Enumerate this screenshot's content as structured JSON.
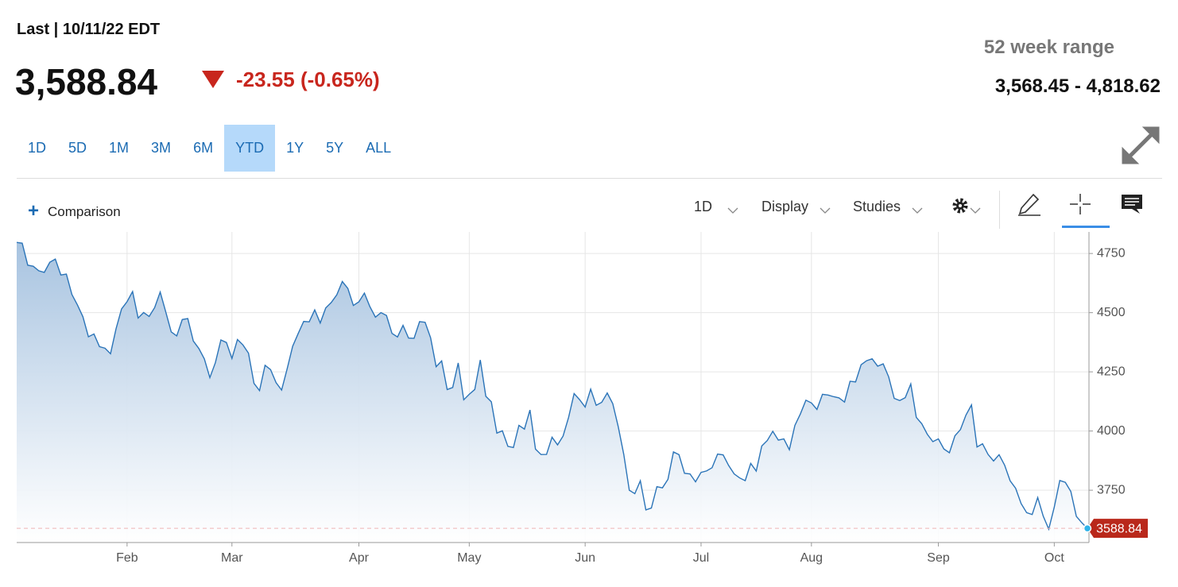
{
  "header": {
    "last_label": "Last | 10/11/22 EDT",
    "price": "3,588.84",
    "change": "-23.55 (-0.65%)",
    "range_title": "52 week range",
    "range": "3,568.45 - 4,818.62"
  },
  "ranges": {
    "buttons": [
      "1D",
      "5D",
      "1M",
      "3M",
      "6M",
      "YTD",
      "1Y",
      "5Y",
      "ALL"
    ],
    "selected": "YTD"
  },
  "toolbar": {
    "comparison": "Comparison",
    "interval": "1D",
    "display": "Display",
    "studies": "Studies"
  },
  "chart_data": {
    "type": "area",
    "color": "#2b74b8",
    "categories": [
      null,
      null,
      null,
      null,
      null,
      null,
      null,
      null,
      null,
      null,
      null,
      null,
      null,
      null,
      null,
      null,
      null,
      null,
      null,
      null,
      "Feb",
      null,
      null,
      null,
      null,
      null,
      null,
      null,
      null,
      null,
      null,
      null,
      null,
      null,
      null,
      null,
      null,
      null,
      null,
      "Mar",
      null,
      null,
      null,
      null,
      null,
      null,
      null,
      null,
      null,
      null,
      null,
      null,
      null,
      null,
      null,
      null,
      null,
      null,
      null,
      null,
      null,
      null,
      "Apr",
      null,
      null,
      null,
      null,
      null,
      null,
      null,
      null,
      null,
      null,
      null,
      null,
      null,
      null,
      null,
      null,
      null,
      null,
      null,
      "May",
      null,
      null,
      null,
      null,
      null,
      null,
      null,
      null,
      null,
      null,
      null,
      null,
      null,
      null,
      null,
      null,
      null,
      null,
      null,
      null,
      "Jun",
      null,
      null,
      null,
      null,
      null,
      null,
      null,
      null,
      null,
      null,
      null,
      null,
      null,
      null,
      null,
      null,
      null,
      null,
      null,
      null,
      "Jul",
      null,
      null,
      null,
      null,
      null,
      null,
      null,
      null,
      null,
      null,
      null,
      null,
      null,
      null,
      null,
      null,
      null,
      null,
      null,
      "Aug",
      null,
      null,
      null,
      null,
      null,
      null,
      null,
      null,
      null,
      null,
      null,
      null,
      null,
      null,
      null,
      null,
      null,
      null,
      null,
      null,
      null,
      null,
      "Sep",
      null,
      null,
      null,
      null,
      null,
      null,
      null,
      null,
      null,
      null,
      null,
      null,
      null,
      null,
      null,
      null,
      null,
      null,
      null,
      null,
      "Oct",
      null,
      null,
      null,
      null,
      null,
      null
    ],
    "values": [
      4796.56,
      4793.54,
      4700.58,
      4696.05,
      4677.03,
      4670.29,
      4713.07,
      4726.35,
      4659.03,
      4662.85,
      4577.11,
      4532.76,
      4482.73,
      4397.94,
      4410.13,
      4356.45,
      4349.93,
      4326.51,
      4431.85,
      4515.55,
      4546.54,
      4589.38,
      4477.44,
      4500.53,
      4483.87,
      4521.54,
      4587.18,
      4504.08,
      4418.64,
      4401.67,
      4471.07,
      4475.01,
      4380.26,
      4348.87,
      4304.76,
      4225.5,
      4288.7,
      4384.65,
      4373.94,
      4306.26,
      4386.54,
      4363.49,
      4328.87,
      4201.09,
      4170.7,
      4277.88,
      4259.52,
      4204.31,
      4173.11,
      4262.45,
      4357.86,
      4411.67,
      4463.12,
      4461.18,
      4511.61,
      4456.24,
      4520.16,
      4543.06,
      4575.52,
      4631.6,
      4602.45,
      4530.41,
      4545.86,
      4582.64,
      4525.12,
      4481.15,
      4500.21,
      4488.28,
      4412.53,
      4397.45,
      4446.59,
      4392.59,
      4391.69,
      4462.21,
      4459.45,
      4393.66,
      4271.78,
      4296.12,
      4175.2,
      4183.96,
      4287.5,
      4131.93,
      4155.38,
      4175.48,
      4300.17,
      4146.87,
      4123.34,
      3991.24,
      4001.05,
      3935.18,
      3930.08,
      4023.89,
      4008.01,
      4088.85,
      3923.68,
      3900.79,
      3901.36,
      3973.75,
      3941.48,
      3978.73,
      4057.84,
      4158.24,
      4132.15,
      4101.23,
      4176.82,
      4108.54,
      4121.43,
      4160.68,
      4115.77,
      4017.82,
      3900.86,
      3749.63,
      3735.48,
      3789.99,
      3666.77,
      3674.84,
      3764.79,
      3759.89,
      3795.73,
      3911.74,
      3900.11,
      3821.55,
      3818.83,
      3785.38,
      3825.33,
      3831.39,
      3845.08,
      3902.62,
      3899.38,
      3854.43,
      3818.8,
      3801.78,
      3790.38,
      3863.16,
      3830.85,
      3936.69,
      3959.9,
      3998.95,
      3961.63,
      3966.84,
      3921.05,
      4023.61,
      4072.43,
      4130.29,
      4118.63,
      4091.19,
      4155.17,
      4151.94,
      4145.19,
      4140.06,
      4122.47,
      4210.24,
      4207.27,
      4280.15,
      4297.14,
      4305.2,
      4274.04,
      4283.74,
      4228.48,
      4137.99,
      4128.73,
      4140.77,
      4199.12,
      4057.66,
      4030.61,
      3986.16,
      3955.0,
      3966.85,
      3924.26,
      3908.19,
      3979.87,
      4006.18,
      4067.36,
      4110.41,
      3932.69,
      3946.01,
      3901.35,
      3873.33,
      3899.89,
      3855.93,
      3789.93,
      3757.99,
      3693.23,
      3655.04,
      3647.29,
      3719.04,
      3640.47,
      3585.62,
      3678.43,
      3790.93,
      3783.28,
      3744.52,
      3639.66,
      3612.39,
      3588.84
    ],
    "ylim": [
      3529,
      4841
    ],
    "yticks": [
      3750,
      4000,
      4250,
      4500,
      4750
    ],
    "grid": true,
    "y_axis_side": "right",
    "last_value_marker": true
  }
}
